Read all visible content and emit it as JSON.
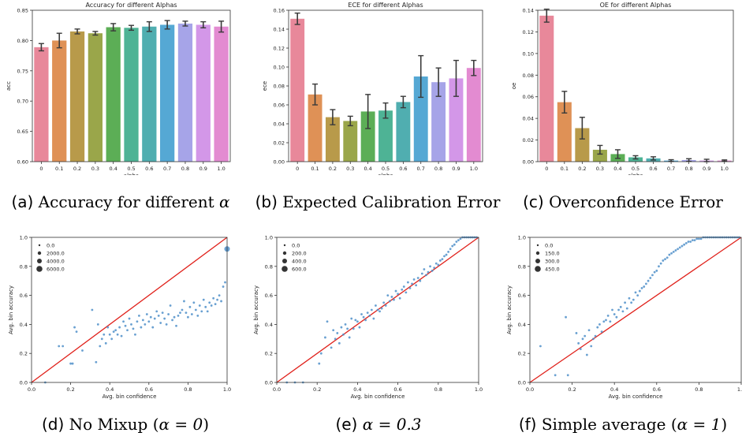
{
  "chart_data": [
    {
      "type": "bar",
      "title": "Accuracy for different Alphas",
      "xlabel": "alpha",
      "ylabel": "acc",
      "categories": [
        "0",
        "0.1",
        "0.2",
        "0.3",
        "0.4",
        "0.5",
        "0.6",
        "0.7",
        "0.8",
        "0.9",
        "1.0"
      ],
      "values": [
        0.789,
        0.8,
        0.815,
        0.812,
        0.822,
        0.821,
        0.823,
        0.826,
        0.828,
        0.826,
        0.823
      ],
      "errors": [
        0.006,
        0.012,
        0.004,
        0.003,
        0.006,
        0.004,
        0.008,
        0.007,
        0.004,
        0.005,
        0.009
      ],
      "ylim": [
        0.6,
        0.85
      ],
      "yticks": [
        "0.60",
        "0.65",
        "0.70",
        "0.75",
        "0.80",
        "0.85"
      ],
      "colors": [
        "#e8889a",
        "#df9156",
        "#b89a4a",
        "#9aa64a",
        "#5cae56",
        "#4eb395",
        "#50aeb0",
        "#55a8d4",
        "#a6a4e8",
        "#d397e8",
        "#e38bd1"
      ]
    },
    {
      "type": "bar",
      "title": "ECE for different Alphas",
      "xlabel": "alpha",
      "ylabel": "ece",
      "categories": [
        "0",
        "0.1",
        "0.2",
        "0.3",
        "0.4",
        "0.5",
        "0.6",
        "0.7",
        "0.8",
        "0.9",
        "1.0"
      ],
      "values": [
        0.151,
        0.071,
        0.047,
        0.043,
        0.053,
        0.054,
        0.063,
        0.09,
        0.084,
        0.088,
        0.099
      ],
      "errors": [
        0.006,
        0.011,
        0.008,
        0.005,
        0.018,
        0.008,
        0.006,
        0.022,
        0.015,
        0.019,
        0.008
      ],
      "ylim": [
        0,
        0.16
      ],
      "yticks": [
        "0.00",
        "0.02",
        "0.04",
        "0.06",
        "0.08",
        "0.10",
        "0.12",
        "0.14",
        "0.16"
      ],
      "colors": [
        "#e8889a",
        "#df9156",
        "#b89a4a",
        "#9aa64a",
        "#5cae56",
        "#4eb395",
        "#50aeb0",
        "#55a8d4",
        "#a6a4e8",
        "#d397e8",
        "#e38bd1"
      ]
    },
    {
      "type": "bar",
      "title": "OE for different Alphas",
      "xlabel": "alpha",
      "ylabel": "oe",
      "categories": [
        "0",
        "0.1",
        "0.2",
        "0.3",
        "0.4",
        "0.5",
        "0.6",
        "0.7",
        "0.8",
        "0.9",
        "1.0"
      ],
      "values": [
        0.135,
        0.055,
        0.031,
        0.011,
        0.007,
        0.004,
        0.003,
        0.001,
        0.0015,
        0.001,
        0.001
      ],
      "errors": [
        0.006,
        0.01,
        0.01,
        0.004,
        0.004,
        0.0015,
        0.0015,
        0.0008,
        0.0012,
        0.0012,
        0.0006
      ],
      "ylim": [
        0,
        0.14
      ],
      "yticks": [
        "0.00",
        "0.02",
        "0.04",
        "0.06",
        "0.08",
        "0.10",
        "0.12",
        "0.14"
      ],
      "colors": [
        "#e8889a",
        "#df9156",
        "#b89a4a",
        "#9aa64a",
        "#5cae56",
        "#4eb395",
        "#50aeb0",
        "#55a8d4",
        "#a6a4e8",
        "#d397e8",
        "#e38bd1"
      ]
    },
    {
      "type": "scatter",
      "xlabel": "Avg. bin confidence",
      "ylabel": "Avg. bin accuracy",
      "xlim": [
        0,
        1
      ],
      "ylim": [
        0,
        1
      ],
      "xticks": [
        "0.0",
        "0.2",
        "0.4",
        "0.6",
        "0.8",
        "1.0"
      ],
      "yticks": [
        "0.0",
        "0.2",
        "0.4",
        "0.6",
        "0.8",
        "1.0"
      ],
      "legend": [
        "0.0",
        "2000.0",
        "4000.0",
        "6000.0"
      ],
      "legend_position": "top-left",
      "reference_line": [
        [
          0,
          0
        ],
        [
          1,
          1
        ]
      ],
      "point_color": "#4f8fc9",
      "line_color": "#e0201a",
      "points": [
        [
          0.07,
          0.0
        ],
        [
          0.14,
          0.25
        ],
        [
          0.16,
          0.25
        ],
        [
          0.2,
          0.13
        ],
        [
          0.21,
          0.13
        ],
        [
          0.22,
          0.38
        ],
        [
          0.23,
          0.35
        ],
        [
          0.26,
          0.22
        ],
        [
          0.31,
          0.5
        ],
        [
          0.33,
          0.14
        ],
        [
          0.34,
          0.4
        ],
        [
          0.35,
          0.25
        ],
        [
          0.36,
          0.3
        ],
        [
          0.37,
          0.33
        ],
        [
          0.38,
          0.27
        ],
        [
          0.39,
          0.38
        ],
        [
          0.4,
          0.33
        ],
        [
          0.41,
          0.3
        ],
        [
          0.42,
          0.35
        ],
        [
          0.43,
          0.36
        ],
        [
          0.44,
          0.33
        ],
        [
          0.45,
          0.38
        ],
        [
          0.46,
          0.32
        ],
        [
          0.47,
          0.42
        ],
        [
          0.48,
          0.39
        ],
        [
          0.49,
          0.36
        ],
        [
          0.5,
          0.44
        ],
        [
          0.51,
          0.4
        ],
        [
          0.52,
          0.37
        ],
        [
          0.53,
          0.33
        ],
        [
          0.54,
          0.42
        ],
        [
          0.55,
          0.46
        ],
        [
          0.56,
          0.38
        ],
        [
          0.57,
          0.43
        ],
        [
          0.58,
          0.4
        ],
        [
          0.59,
          0.47
        ],
        [
          0.6,
          0.42
        ],
        [
          0.61,
          0.45
        ],
        [
          0.62,
          0.38
        ],
        [
          0.63,
          0.44
        ],
        [
          0.64,
          0.49
        ],
        [
          0.65,
          0.46
        ],
        [
          0.66,
          0.41
        ],
        [
          0.67,
          0.48
        ],
        [
          0.68,
          0.44
        ],
        [
          0.69,
          0.4
        ],
        [
          0.7,
          0.47
        ],
        [
          0.71,
          0.53
        ],
        [
          0.72,
          0.43
        ],
        [
          0.73,
          0.45
        ],
        [
          0.74,
          0.39
        ],
        [
          0.75,
          0.46
        ],
        [
          0.76,
          0.48
        ],
        [
          0.77,
          0.5
        ],
        [
          0.78,
          0.56
        ],
        [
          0.79,
          0.48
        ],
        [
          0.8,
          0.45
        ],
        [
          0.81,
          0.52
        ],
        [
          0.82,
          0.47
        ],
        [
          0.83,
          0.55
        ],
        [
          0.84,
          0.5
        ],
        [
          0.85,
          0.46
        ],
        [
          0.86,
          0.53
        ],
        [
          0.87,
          0.49
        ],
        [
          0.88,
          0.57
        ],
        [
          0.89,
          0.52
        ],
        [
          0.9,
          0.49
        ],
        [
          0.91,
          0.55
        ],
        [
          0.92,
          0.53
        ],
        [
          0.93,
          0.58
        ],
        [
          0.94,
          0.54
        ],
        [
          0.95,
          0.57
        ],
        [
          0.96,
          0.6
        ],
        [
          0.97,
          0.56
        ],
        [
          0.98,
          0.66
        ],
        [
          0.99,
          0.69
        ],
        [
          1.0,
          0.92
        ]
      ]
    },
    {
      "type": "scatter",
      "xlabel": "Avg. bin confidence",
      "ylabel": "Avg. bin accuracy",
      "xlim": [
        0,
        1
      ],
      "ylim": [
        0,
        1
      ],
      "xticks": [
        "0.0",
        "0.2",
        "0.4",
        "0.6",
        "0.8",
        "1.0"
      ],
      "yticks": [
        "0.0",
        "0.2",
        "0.4",
        "0.6",
        "0.8",
        "1.0"
      ],
      "legend": [
        "0.0",
        "200.0",
        "400.0",
        "600.0"
      ],
      "legend_position": "top-left",
      "reference_line": [
        [
          0,
          0
        ],
        [
          1,
          1
        ]
      ],
      "point_color": "#4f8fc9",
      "line_color": "#e0201a",
      "points": [
        [
          0.05,
          0.0
        ],
        [
          0.09,
          0.0
        ],
        [
          0.13,
          0.0
        ],
        [
          0.21,
          0.13
        ],
        [
          0.22,
          0.2
        ],
        [
          0.24,
          0.31
        ],
        [
          0.25,
          0.42
        ],
        [
          0.27,
          0.24
        ],
        [
          0.28,
          0.36
        ],
        [
          0.29,
          0.3
        ],
        [
          0.3,
          0.34
        ],
        [
          0.31,
          0.27
        ],
        [
          0.32,
          0.38
        ],
        [
          0.33,
          0.33
        ],
        [
          0.34,
          0.4
        ],
        [
          0.35,
          0.37
        ],
        [
          0.36,
          0.31
        ],
        [
          0.37,
          0.44
        ],
        [
          0.38,
          0.37
        ],
        [
          0.39,
          0.43
        ],
        [
          0.4,
          0.42
        ],
        [
          0.41,
          0.38
        ],
        [
          0.42,
          0.47
        ],
        [
          0.43,
          0.45
        ],
        [
          0.44,
          0.43
        ],
        [
          0.45,
          0.48
        ],
        [
          0.46,
          0.46
        ],
        [
          0.47,
          0.5
        ],
        [
          0.48,
          0.44
        ],
        [
          0.49,
          0.53
        ],
        [
          0.5,
          0.5
        ],
        [
          0.51,
          0.49
        ],
        [
          0.52,
          0.51
        ],
        [
          0.53,
          0.55
        ],
        [
          0.54,
          0.53
        ],
        [
          0.55,
          0.6
        ],
        [
          0.56,
          0.56
        ],
        [
          0.57,
          0.59
        ],
        [
          0.58,
          0.57
        ],
        [
          0.59,
          0.63
        ],
        [
          0.6,
          0.61
        ],
        [
          0.61,
          0.58
        ],
        [
          0.62,
          0.64
        ],
        [
          0.63,
          0.66
        ],
        [
          0.64,
          0.62
        ],
        [
          0.65,
          0.69
        ],
        [
          0.66,
          0.65
        ],
        [
          0.67,
          0.68
        ],
        [
          0.68,
          0.71
        ],
        [
          0.69,
          0.67
        ],
        [
          0.7,
          0.72
        ],
        [
          0.71,
          0.7
        ],
        [
          0.72,
          0.75
        ],
        [
          0.73,
          0.78
        ],
        [
          0.74,
          0.74
        ],
        [
          0.75,
          0.76
        ],
        [
          0.76,
          0.8
        ],
        [
          0.77,
          0.77
        ],
        [
          0.78,
          0.79
        ],
        [
          0.79,
          0.82
        ],
        [
          0.8,
          0.81
        ],
        [
          0.81,
          0.84
        ],
        [
          0.82,
          0.85
        ],
        [
          0.83,
          0.87
        ],
        [
          0.84,
          0.88
        ],
        [
          0.85,
          0.9
        ],
        [
          0.86,
          0.92
        ],
        [
          0.87,
          0.94
        ],
        [
          0.88,
          0.95
        ],
        [
          0.89,
          0.97
        ],
        [
          0.9,
          0.98
        ],
        [
          0.91,
          0.99
        ],
        [
          0.92,
          1.0
        ],
        [
          0.93,
          1.0
        ],
        [
          0.94,
          1.0
        ],
        [
          0.95,
          1.0
        ],
        [
          0.96,
          1.0
        ],
        [
          0.97,
          1.0
        ],
        [
          0.98,
          1.0
        ],
        [
          0.99,
          1.0
        ]
      ]
    },
    {
      "type": "scatter",
      "xlabel": "Avg. bin confidence",
      "ylabel": "Avg. bin accuracy",
      "xlim": [
        0,
        1
      ],
      "ylim": [
        0,
        1
      ],
      "xticks": [
        "0.0",
        "0.2",
        "0.4",
        "0.6",
        "0.8",
        "1.0"
      ],
      "yticks": [
        "0.0",
        "0.2",
        "0.4",
        "0.6",
        "0.8",
        "1.0"
      ],
      "legend": [
        "0.0",
        "150.0",
        "300.0",
        "450.0"
      ],
      "legend_position": "top-left",
      "reference_line": [
        [
          0,
          0
        ],
        [
          1,
          1
        ]
      ],
      "point_color": "#4f8fc9",
      "line_color": "#e0201a",
      "points": [
        [
          0.05,
          0.25
        ],
        [
          0.12,
          0.05
        ],
        [
          0.17,
          0.45
        ],
        [
          0.18,
          0.05
        ],
        [
          0.22,
          0.34
        ],
        [
          0.23,
          0.27
        ],
        [
          0.24,
          0.23
        ],
        [
          0.25,
          0.3
        ],
        [
          0.26,
          0.32
        ],
        [
          0.27,
          0.19
        ],
        [
          0.28,
          0.36
        ],
        [
          0.29,
          0.25
        ],
        [
          0.3,
          0.3
        ],
        [
          0.31,
          0.32
        ],
        [
          0.32,
          0.38
        ],
        [
          0.33,
          0.4
        ],
        [
          0.34,
          0.35
        ],
        [
          0.35,
          0.42
        ],
        [
          0.36,
          0.43
        ],
        [
          0.37,
          0.46
        ],
        [
          0.38,
          0.42
        ],
        [
          0.39,
          0.5
        ],
        [
          0.4,
          0.47
        ],
        [
          0.41,
          0.45
        ],
        [
          0.42,
          0.5
        ],
        [
          0.43,
          0.52
        ],
        [
          0.44,
          0.49
        ],
        [
          0.45,
          0.55
        ],
        [
          0.46,
          0.51
        ],
        [
          0.47,
          0.58
        ],
        [
          0.48,
          0.55
        ],
        [
          0.49,
          0.57
        ],
        [
          0.5,
          0.62
        ],
        [
          0.51,
          0.6
        ],
        [
          0.52,
          0.63
        ],
        [
          0.53,
          0.65
        ],
        [
          0.54,
          0.66
        ],
        [
          0.55,
          0.68
        ],
        [
          0.56,
          0.7
        ],
        [
          0.57,
          0.72
        ],
        [
          0.58,
          0.74
        ],
        [
          0.59,
          0.76
        ],
        [
          0.6,
          0.77
        ],
        [
          0.61,
          0.8
        ],
        [
          0.62,
          0.82
        ],
        [
          0.63,
          0.84
        ],
        [
          0.64,
          0.85
        ],
        [
          0.65,
          0.86
        ],
        [
          0.66,
          0.88
        ],
        [
          0.67,
          0.89
        ],
        [
          0.68,
          0.9
        ],
        [
          0.69,
          0.91
        ],
        [
          0.7,
          0.92
        ],
        [
          0.71,
          0.93
        ],
        [
          0.72,
          0.94
        ],
        [
          0.73,
          0.95
        ],
        [
          0.74,
          0.96
        ],
        [
          0.75,
          0.97
        ],
        [
          0.76,
          0.97
        ],
        [
          0.77,
          0.98
        ],
        [
          0.78,
          0.98
        ],
        [
          0.79,
          0.99
        ],
        [
          0.8,
          0.99
        ],
        [
          0.81,
          0.99
        ],
        [
          0.82,
          1.0
        ],
        [
          0.83,
          1.0
        ],
        [
          0.84,
          1.0
        ],
        [
          0.85,
          1.0
        ],
        [
          0.86,
          1.0
        ],
        [
          0.87,
          1.0
        ],
        [
          0.88,
          1.0
        ],
        [
          0.89,
          1.0
        ],
        [
          0.9,
          1.0
        ],
        [
          0.91,
          1.0
        ],
        [
          0.92,
          1.0
        ],
        [
          0.93,
          1.0
        ],
        [
          0.94,
          1.0
        ],
        [
          0.95,
          1.0
        ],
        [
          0.96,
          1.0
        ],
        [
          0.97,
          1.0
        ],
        [
          0.98,
          1.0
        ],
        [
          0.99,
          1.0
        ]
      ]
    }
  ],
  "captions": [
    {
      "label": "(a)",
      "text": "Accuracy for different ",
      "math": "α"
    },
    {
      "label": "(b)",
      "text": "Expected Calibration Error",
      "math": ""
    },
    {
      "label": "(c)",
      "text": "Overconfidence Error",
      "math": ""
    },
    {
      "label": "(d)",
      "text": "No Mixup (",
      "math": "α = 0",
      "suffix": ")"
    },
    {
      "label": "(e)",
      "text": "",
      "math": "α = 0.3",
      "suffix": ""
    },
    {
      "label": "(f)",
      "text": "Simple average (",
      "math": "α = 1",
      "suffix": ")"
    }
  ]
}
